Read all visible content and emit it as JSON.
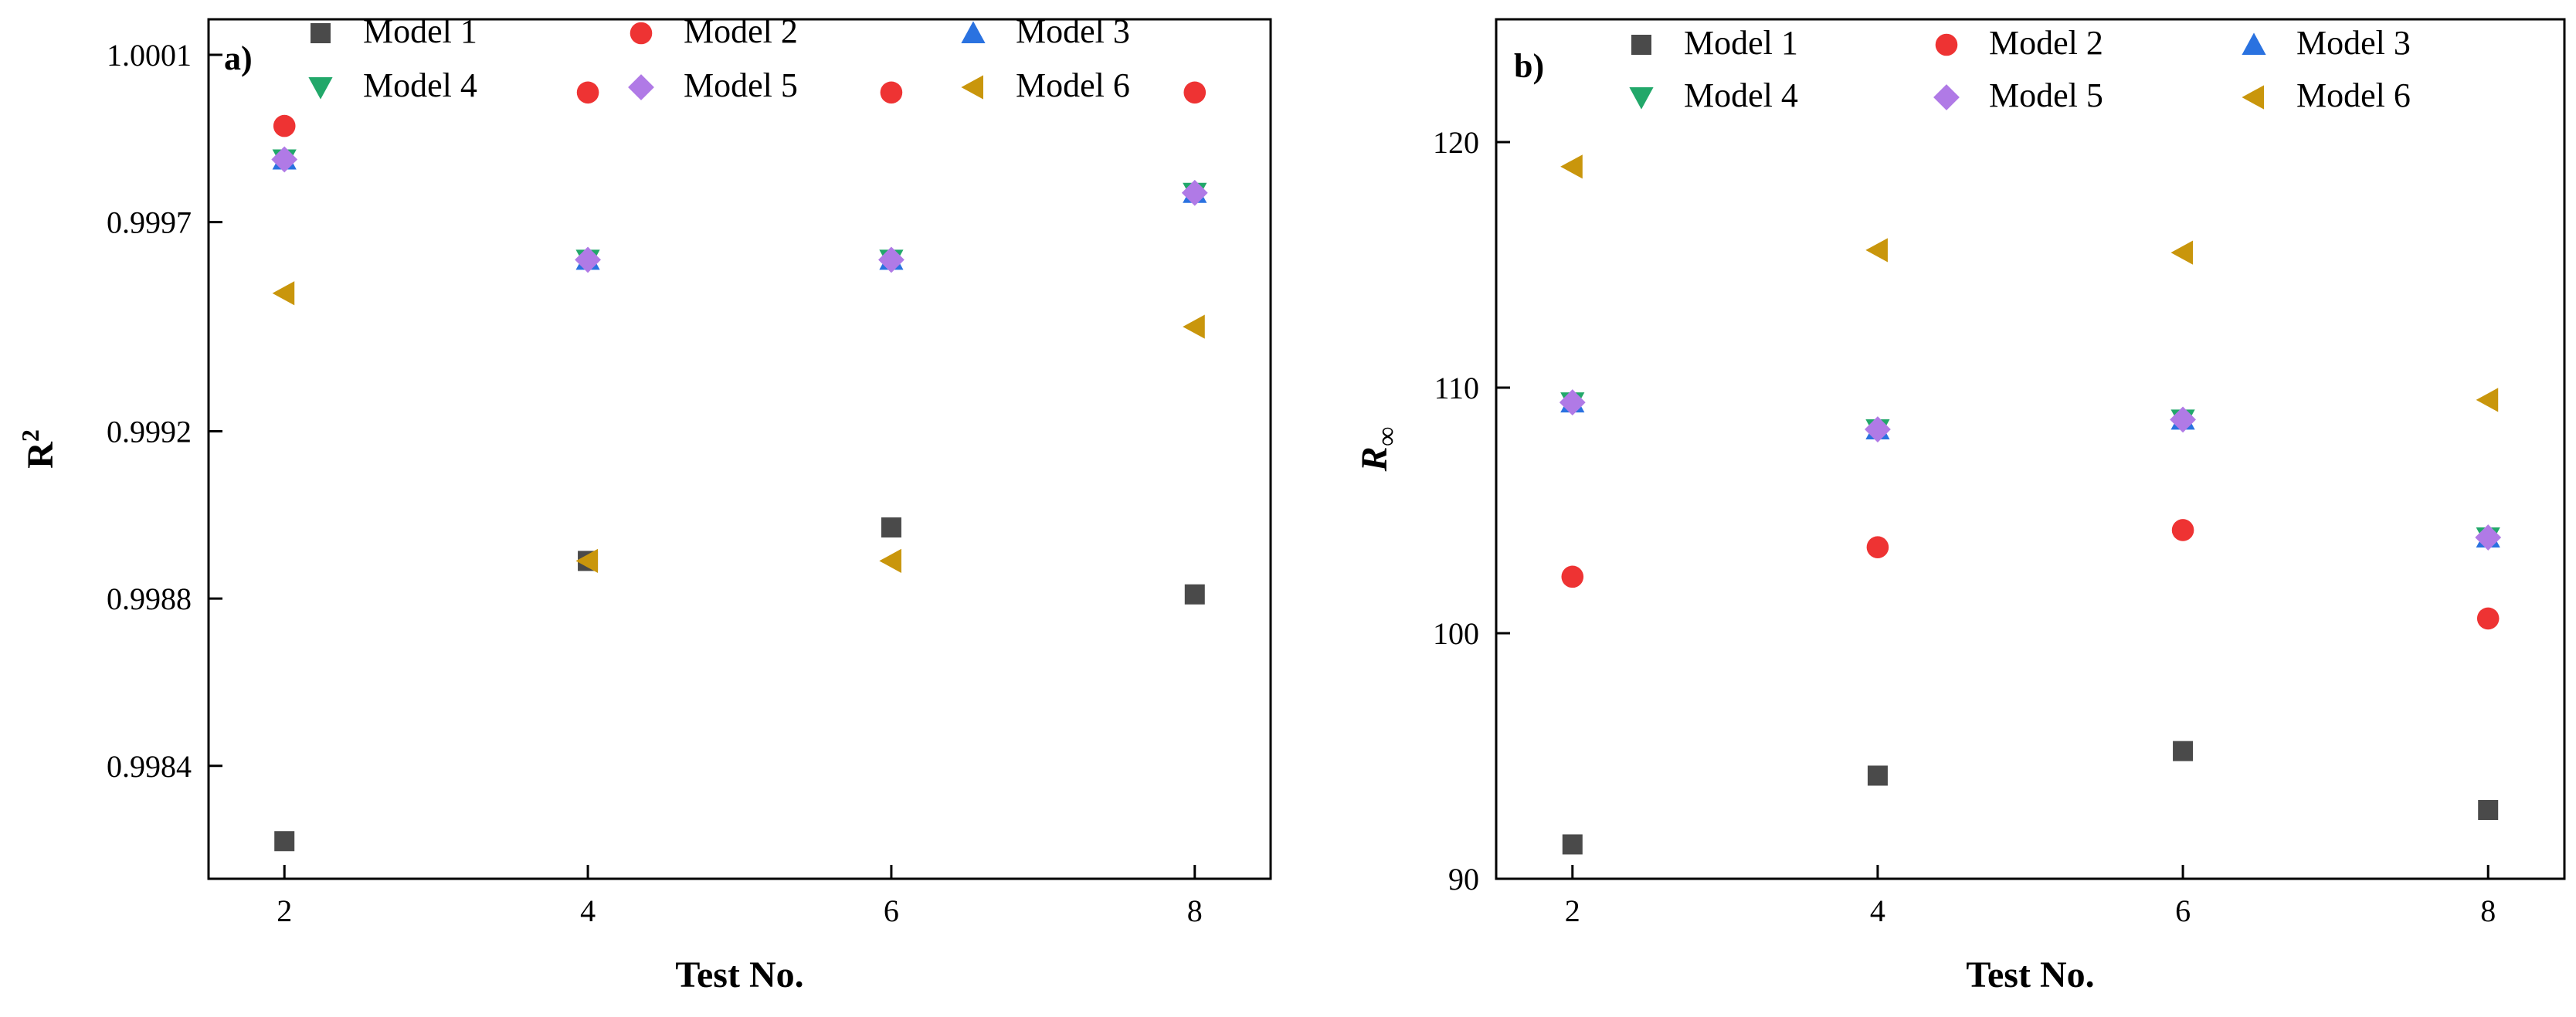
{
  "colors": {
    "Model 1": "#4a4a4a",
    "Model 2": "#ee3333",
    "Model 3": "#2a72e0",
    "Model 4": "#22a86a",
    "Model 5": "#b07ae6",
    "Model 6": "#c9960c"
  },
  "markers": {
    "Model 1": "square",
    "Model 2": "circle",
    "Model 3": "triangle-up",
    "Model 4": "triangle-down",
    "Model 5": "diamond",
    "Model 6": "triangle-left"
  },
  "chart_data": [
    {
      "type": "scatter",
      "panel_label": "a)",
      "xlabel": "Test No.",
      "ylabel": "R",
      "ylabel_superscript": "2",
      "xlim": [
        1.5,
        8.5
      ],
      "ylim": [
        0.99813,
        1.000185
      ],
      "xticks": [
        2,
        4,
        6,
        8
      ],
      "xtick_labels": [
        "2",
        "4",
        "6",
        "8"
      ],
      "yticks": [
        0.9984,
        0.9988,
        0.9992,
        0.9997,
        1.0001
      ],
      "ytick_labels": [
        "0.9984",
        "0.9988",
        "0.9992",
        "0.9997",
        "1.0001"
      ],
      "legend_position": "top",
      "series": [
        {
          "name": "Model 1",
          "x": [
            2,
            4,
            6,
            8
          ],
          "y": [
            0.99822,
            0.99889,
            0.99897,
            0.99881
          ]
        },
        {
          "name": "Model 2",
          "x": [
            2,
            4,
            6,
            8
          ],
          "y": [
            0.99993,
            1.00001,
            1.00001,
            1.00001
          ]
        },
        {
          "name": "Model 3",
          "x": [
            2,
            4,
            6,
            8
          ],
          "y": [
            0.99985,
            0.99961,
            0.99961,
            0.99977
          ]
        },
        {
          "name": "Model 4",
          "x": [
            2,
            4,
            6,
            8
          ],
          "y": [
            0.99985,
            0.99961,
            0.99961,
            0.99977
          ]
        },
        {
          "name": "Model 5",
          "x": [
            2,
            4,
            6,
            8
          ],
          "y": [
            0.99985,
            0.99961,
            0.99961,
            0.99977
          ]
        },
        {
          "name": "Model 6",
          "x": [
            2,
            4,
            6,
            8
          ],
          "y": [
            0.99953,
            0.99889,
            0.99889,
            0.99945
          ]
        }
      ]
    },
    {
      "type": "scatter",
      "panel_label": "b)",
      "xlabel": "Test No.",
      "ylabel": "R",
      "ylabel_subscript": "∞",
      "xlim": [
        1.5,
        8.5
      ],
      "ylim": [
        90,
        125
      ],
      "xticks": [
        2,
        4,
        6,
        8
      ],
      "xtick_labels": [
        "2",
        "4",
        "6",
        "8"
      ],
      "yticks": [
        90,
        100,
        110,
        120
      ],
      "ytick_labels": [
        "90",
        "100",
        "110",
        "120"
      ],
      "legend_position": "top",
      "series": [
        {
          "name": "Model 1",
          "x": [
            2,
            4,
            6,
            8
          ],
          "y": [
            91.4,
            94.2,
            95.2,
            92.8
          ]
        },
        {
          "name": "Model 2",
          "x": [
            2,
            4,
            6,
            8
          ],
          "y": [
            102.3,
            103.5,
            104.2,
            100.6
          ]
        },
        {
          "name": "Model 3",
          "x": [
            2,
            4,
            6,
            8
          ],
          "y": [
            109.4,
            108.3,
            108.7,
            103.9
          ]
        },
        {
          "name": "Model 4",
          "x": [
            2,
            4,
            6,
            8
          ],
          "y": [
            109.4,
            108.3,
            108.7,
            103.9
          ]
        },
        {
          "name": "Model 5",
          "x": [
            2,
            4,
            6,
            8
          ],
          "y": [
            109.4,
            108.3,
            108.7,
            103.9
          ]
        },
        {
          "name": "Model 6",
          "x": [
            2,
            4,
            6,
            8
          ],
          "y": [
            119.0,
            115.6,
            115.5,
            109.5
          ]
        }
      ]
    }
  ]
}
